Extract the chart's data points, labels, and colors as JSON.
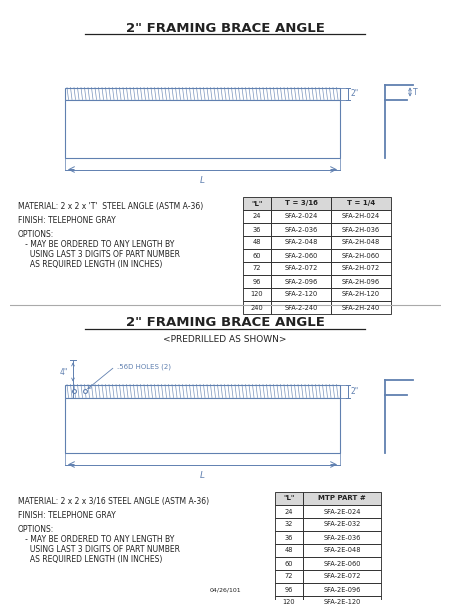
{
  "title1": "2\" FRAMING BRACE ANGLE",
  "title2": "2\" FRAMING BRACE ANGLE",
  "subtitle2": "<PREDRILLED AS SHOWN>",
  "bg_color": "#f0f0f0",
  "panel_color": "#ffffff",
  "line_color": "#6080b0",
  "text_color": "#222222",
  "table1_headers": [
    "\"L\"",
    "T = 3/16",
    "T = 1/4"
  ],
  "table1_rows": [
    [
      "24",
      "SFA-2-024",
      "SFA-2H-024"
    ],
    [
      "36",
      "SFA-2-036",
      "SFA-2H-036"
    ],
    [
      "48",
      "SFA-2-048",
      "SFA-2H-048"
    ],
    [
      "60",
      "SFA-2-060",
      "SFA-2H-060"
    ],
    [
      "72",
      "SFA-2-072",
      "SFA-2H-072"
    ],
    [
      "96",
      "SFA-2-096",
      "SFA-2H-096"
    ],
    [
      "120",
      "SFA-2-120",
      "SFA-2H-120"
    ],
    [
      "240",
      "SFA-2-240",
      "SFA-2H-240"
    ]
  ],
  "table2_headers": [
    "\"L\"",
    "MTP PART #"
  ],
  "table2_rows": [
    [
      "24",
      "SFA-2E-024"
    ],
    [
      "32",
      "SFA-2E-032"
    ],
    [
      "36",
      "SFA-2E-036"
    ],
    [
      "48",
      "SFA-2E-048"
    ],
    [
      "60",
      "SFA-2E-060"
    ],
    [
      "72",
      "SFA-2E-072"
    ],
    [
      "96",
      "SFA-2E-096"
    ],
    [
      "120",
      "SFA-2E-120"
    ]
  ],
  "material1": "MATERIAL: 2 x 2 x 'T'  STEEL ANGLE (ASTM A-36)",
  "finish1": "FINISH: TELEPHONE GRAY",
  "options1_line1": "OPTIONS:",
  "options1_line2": "   - MAY BE ORDERED TO ANY LENGTH BY",
  "options1_line3": "     USING LAST 3 DIGITS OF PART NUMBER",
  "options1_line4": "     AS REQUIRED LENGTH (IN INCHES)",
  "material2": "MATERIAL: 2 x 2 x 3/16 STEEL ANGLE (ASTM A-36)",
  "finish2": "FINISH: TELEPHONE GRAY",
  "options2_line1": "OPTIONS:",
  "options2_line2": "   - MAY BE ORDERED TO ANY LENGTH BY",
  "options2_line3": "     USING LAST 3 DIGITS OF PART NUMBER",
  "options2_line4": "     AS REQUIRED LENGTH (IN INCHES)",
  "footer": "04/26/101",
  "dim_2in": "2\"",
  "dim_T": "T",
  "dim_L": "L",
  "dim_4in": "4\"",
  "dim_holes": ".56D HOLES (2)"
}
